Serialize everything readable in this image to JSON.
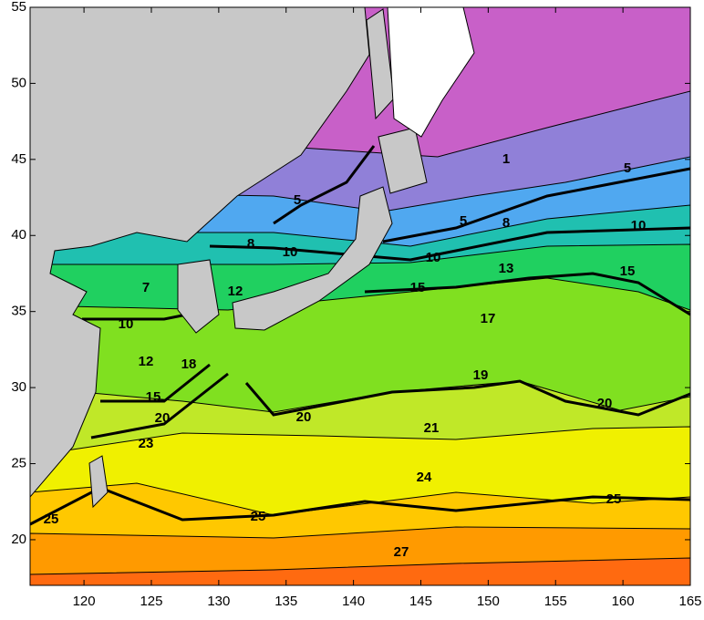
{
  "map": {
    "axes": {
      "xlim": [
        116,
        165
      ],
      "ylim": [
        17,
        55
      ],
      "xticks": [
        120,
        125,
        130,
        135,
        140,
        145,
        150,
        155,
        160,
        165
      ],
      "yticks": [
        20,
        25,
        30,
        35,
        40,
        45,
        50,
        55
      ]
    },
    "contour_labels": [
      1,
      5,
      5,
      5,
      8,
      10,
      8,
      10,
      10,
      13,
      15,
      15,
      7,
      12,
      17,
      10,
      12,
      18,
      19,
      15,
      20,
      20,
      20,
      21,
      23,
      24,
      25,
      25,
      25,
      27
    ]
  }
}
